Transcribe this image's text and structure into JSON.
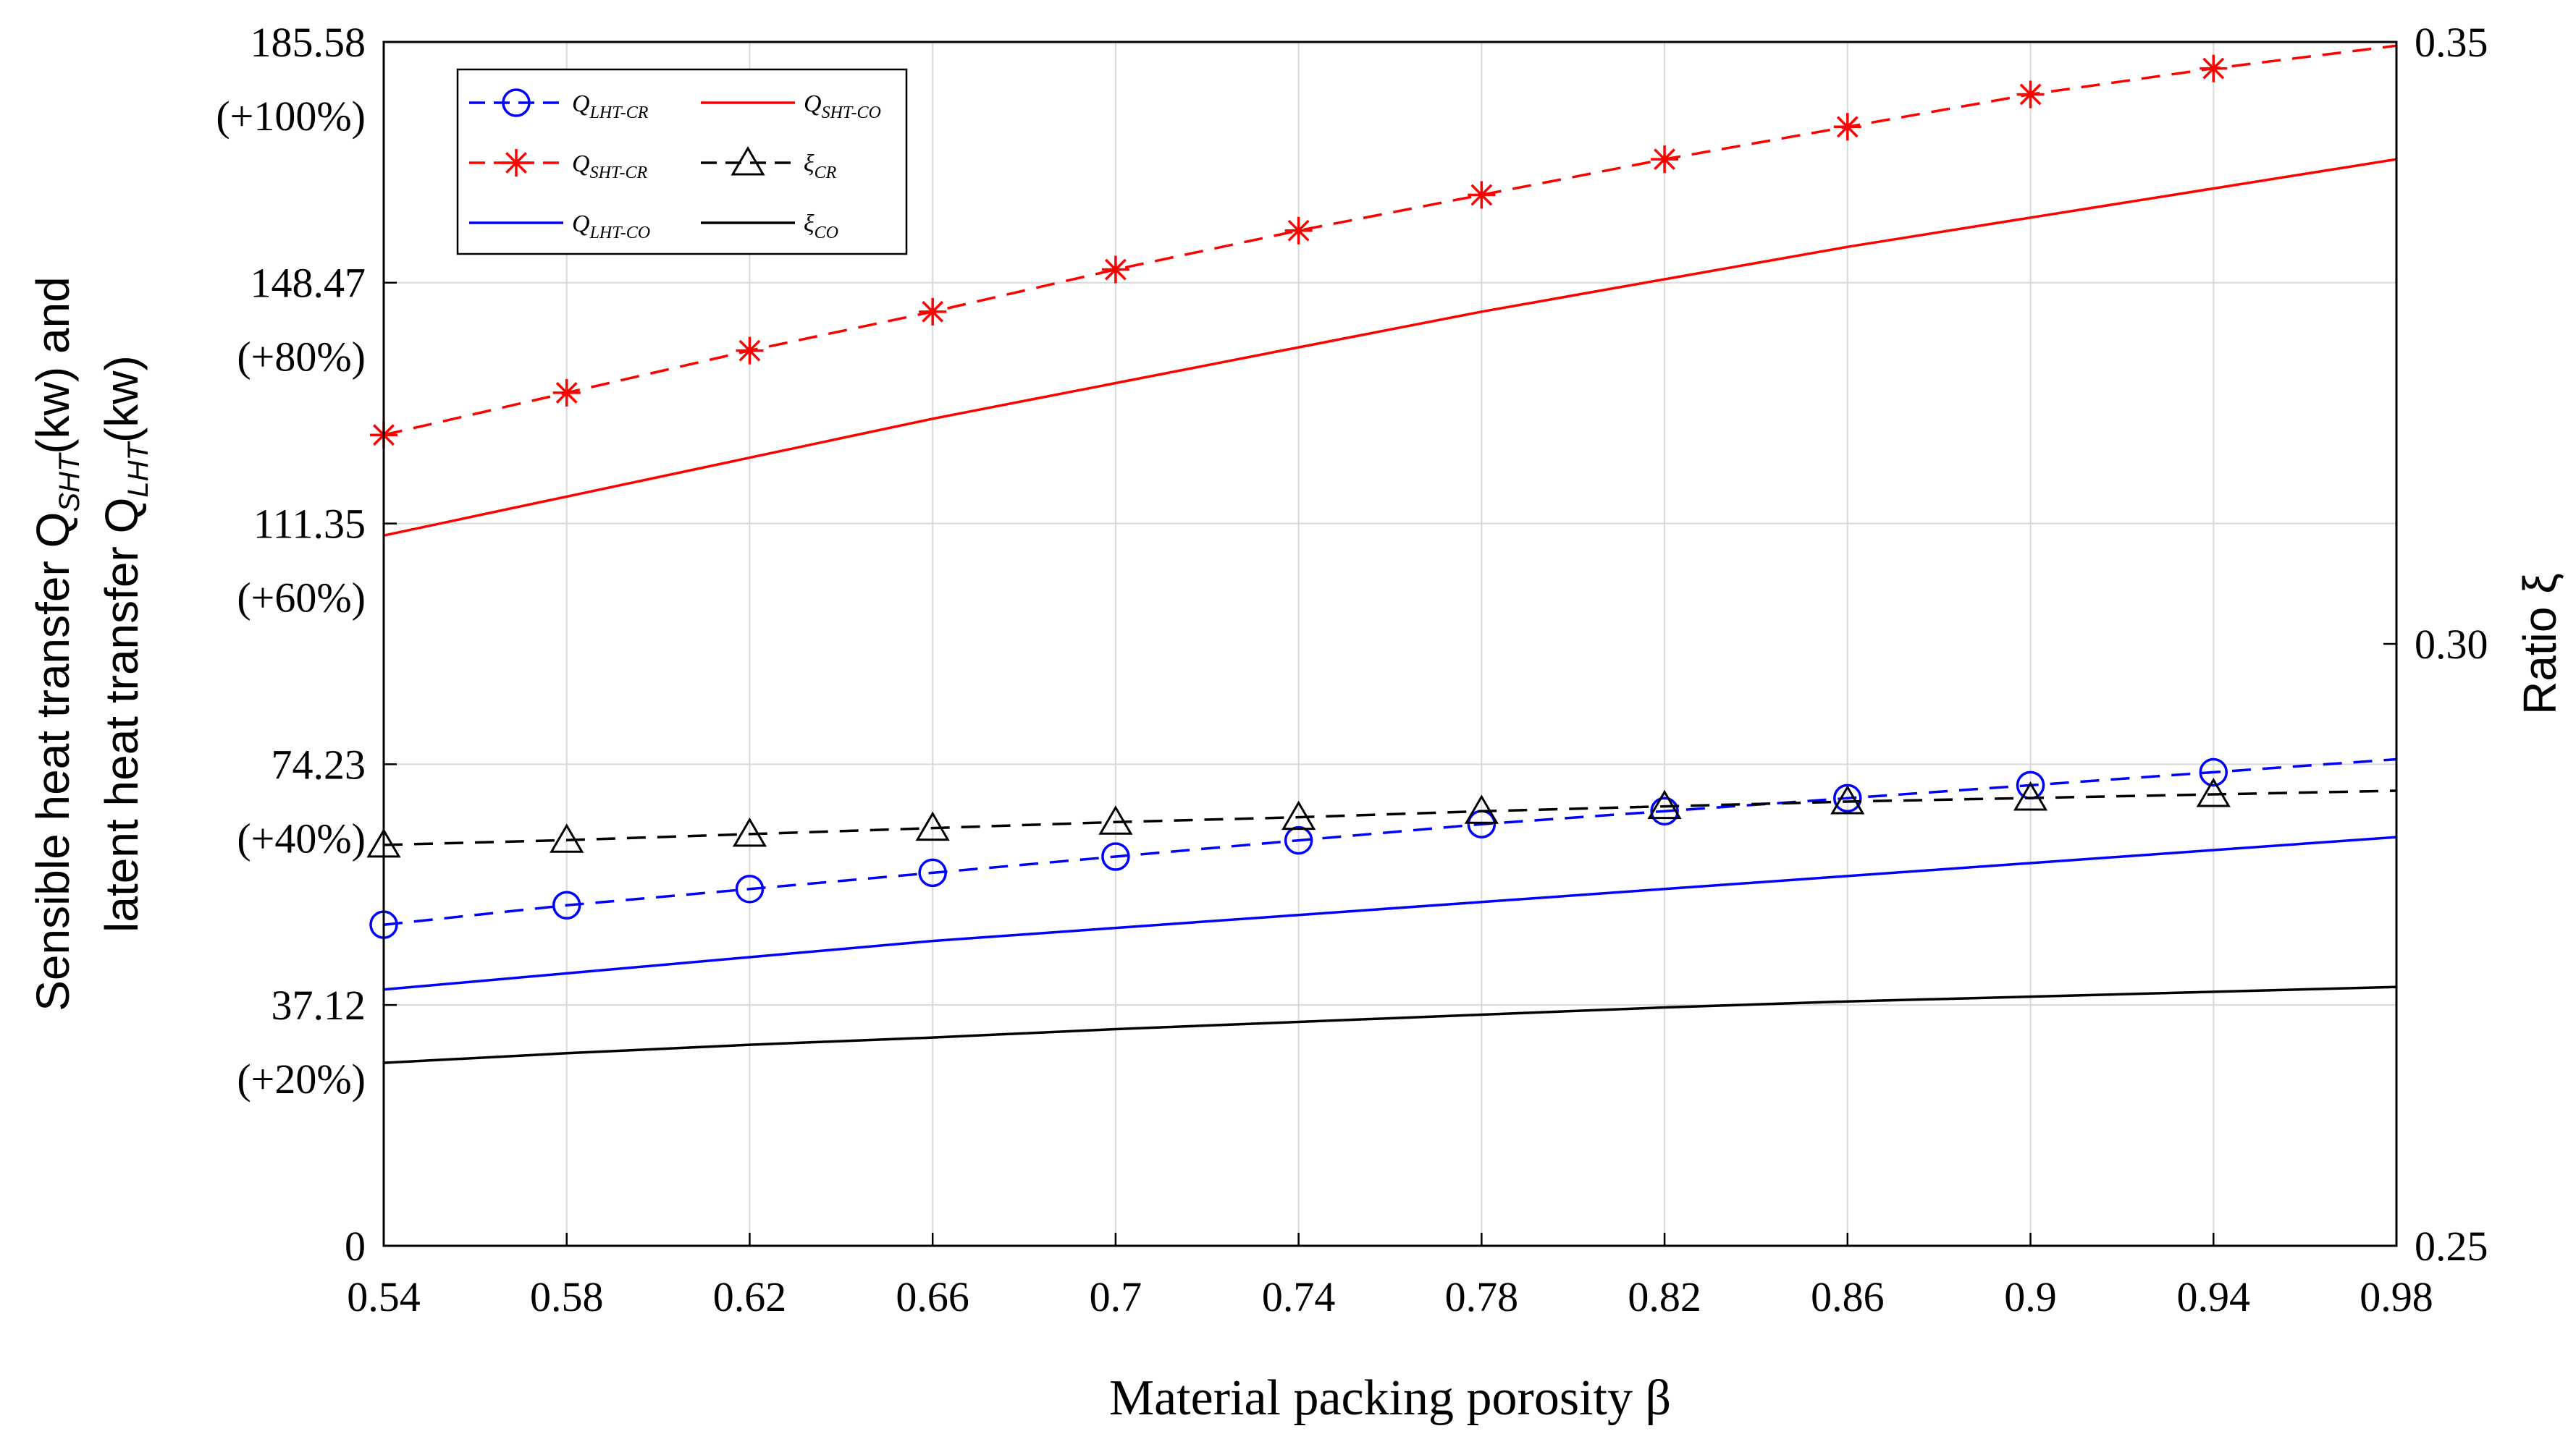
{
  "chart_data": {
    "type": "line",
    "x": [
      0.54,
      0.58,
      0.62,
      0.66,
      0.7,
      0.74,
      0.78,
      0.82,
      0.86,
      0.9,
      0.94,
      0.98
    ],
    "xlabel": "Material packing porosity β",
    "xlim": [
      0.54,
      0.98
    ],
    "x_tick_labels": [
      "0.54",
      "0.58",
      "0.62",
      "0.66",
      "0.7",
      "0.74",
      "0.78",
      "0.82",
      "0.86",
      "0.9",
      "0.94",
      "0.98"
    ],
    "ylabel_left": "Sensible heat transfer Q_SHT(kw) and latent heat transfer Q_LHT(kw)",
    "ylabel_left_line1": "Sensible heat transfer Q",
    "ylabel_left_line1_sub": "SHT",
    "ylabel_left_line1_unit": "(kw) and",
    "ylabel_left_line2": "latent heat transfer Q",
    "ylabel_left_line2_sub": "LHT",
    "ylabel_left_line2_unit": "(kw)",
    "ylim_left": [
      0,
      185.58
    ],
    "y_left_ticks": [
      {
        "value": 0,
        "label": "0",
        "pct": ""
      },
      {
        "value": 37.12,
        "label": "37.12",
        "pct": "(+20%)"
      },
      {
        "value": 74.23,
        "label": "74.23",
        "pct": "(+40%)"
      },
      {
        "value": 111.35,
        "label": "111.35",
        "pct": "(+60%)"
      },
      {
        "value": 148.47,
        "label": "148.47",
        "pct": "(+80%)"
      },
      {
        "value": 185.58,
        "label": "185.58",
        "pct": "(+100%)"
      }
    ],
    "ylabel_right": "Ratio ξ",
    "ylim_right": [
      0.25,
      0.35
    ],
    "y_right_ticks": [
      {
        "value": 0.25,
        "label": "0.25"
      },
      {
        "value": 0.3,
        "label": "0.30"
      },
      {
        "value": 0.35,
        "label": "0.35"
      }
    ],
    "grid": true,
    "legend_position": "top-left",
    "series": [
      {
        "key": "q-sht-cr",
        "name": "Q_SHT-CR",
        "legend_main": "Q",
        "legend_sub": "SHT-CR",
        "axis": "left",
        "color": "#ff0000",
        "dash": true,
        "marker": "star",
        "values": [
          125.0,
          131.5,
          138.0,
          144.0,
          150.5,
          156.5,
          162.0,
          167.5,
          172.5,
          177.5,
          181.5,
          185.0
        ]
      },
      {
        "key": "q-sht-co",
        "name": "Q_SHT-CO",
        "legend_main": "Q",
        "legend_sub": "SHT-CO",
        "axis": "left",
        "color": "#ff0000",
        "dash": false,
        "marker": "none",
        "values": [
          109.5,
          115.5,
          121.5,
          127.5,
          133.0,
          138.5,
          144.0,
          149.0,
          154.0,
          158.5,
          163.0,
          167.5
        ]
      },
      {
        "key": "q-lht-cr",
        "name": "Q_LHT-CR",
        "legend_main": "Q",
        "legend_sub": "LHT-CR",
        "axis": "left",
        "color": "#0000ff",
        "dash": true,
        "marker": "circle",
        "values": [
          49.5,
          52.5,
          55.0,
          57.5,
          60.0,
          62.5,
          65.0,
          67.0,
          69.0,
          71.0,
          73.0,
          75.0
        ]
      },
      {
        "key": "q-lht-co",
        "name": "Q_LHT-CO",
        "legend_main": "Q",
        "legend_sub": "LHT-CO",
        "axis": "left",
        "color": "#0000ff",
        "dash": false,
        "marker": "none",
        "values": [
          39.5,
          42.0,
          44.5,
          47.0,
          49.0,
          51.0,
          53.0,
          55.0,
          57.0,
          59.0,
          61.0,
          63.0
        ]
      },
      {
        "key": "xi-cr",
        "name": "ξ_CR",
        "legend_main": "ξ",
        "legend_sub": "CR",
        "axis": "right",
        "color": "#000000",
        "dash": true,
        "marker": "triangle",
        "values": [
          0.2833,
          0.2837,
          0.2842,
          0.2847,
          0.2852,
          0.2856,
          0.2861,
          0.2865,
          0.2869,
          0.2872,
          0.2875,
          0.2878
        ]
      },
      {
        "key": "xi-co",
        "name": "ξ_CO",
        "legend_main": "ξ",
        "legend_sub": "CO",
        "axis": "right",
        "color": "#000000",
        "dash": false,
        "marker": "none",
        "values": [
          0.2652,
          0.266,
          0.2667,
          0.2673,
          0.268,
          0.2686,
          0.2692,
          0.2698,
          0.2703,
          0.2707,
          0.2711,
          0.2715
        ]
      }
    ]
  }
}
